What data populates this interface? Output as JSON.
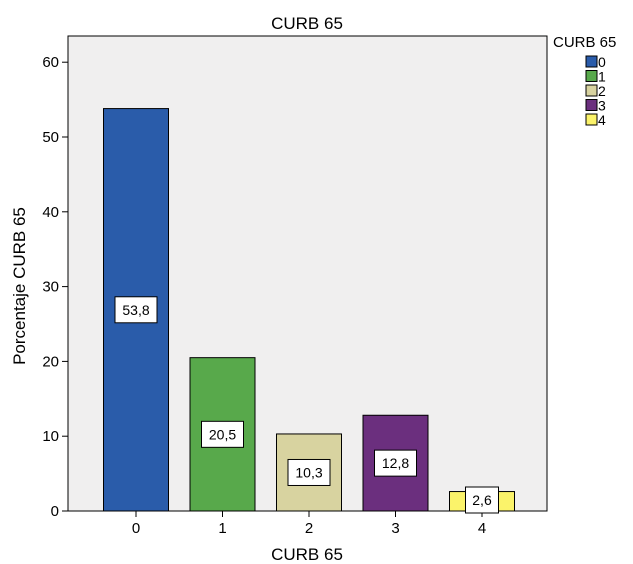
{
  "chart_data": {
    "type": "bar",
    "title": "CURB  65",
    "xlabel": "CURB  65",
    "ylabel": "Porcentaje CURB  65",
    "categories": [
      "0",
      "1",
      "2",
      "3",
      "4"
    ],
    "values": [
      53.8,
      20.5,
      10.3,
      12.8,
      2.6
    ],
    "data_labels": [
      "53,8",
      "20,5",
      "10,3",
      "12,8",
      "2,6"
    ],
    "colors": [
      "#2a5caa",
      "#58a94b",
      "#d8d3a0",
      "#6b2f7e",
      "#fbf36a"
    ],
    "ylim": [
      0,
      63
    ],
    "yticks": [
      0,
      10,
      20,
      30,
      40,
      50,
      60
    ],
    "legend": {
      "title": "CURB  65",
      "items": [
        "0",
        "1",
        "2",
        "3",
        "4"
      ],
      "placement": "top-right"
    },
    "background_color": "#f0efef",
    "grid": false
  }
}
